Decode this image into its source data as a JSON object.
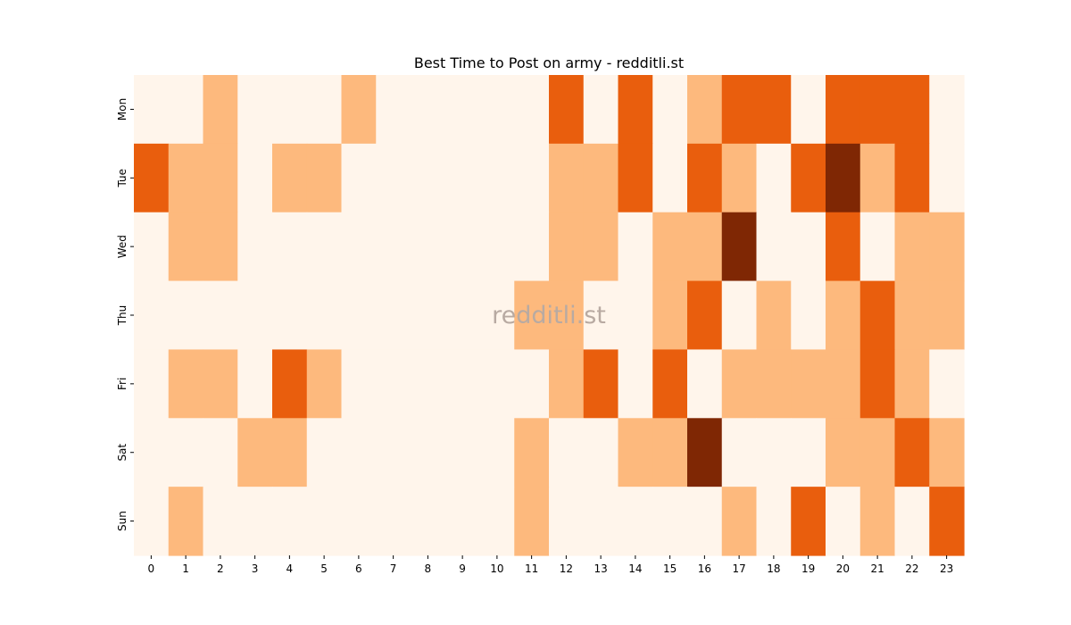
{
  "chart_data": {
    "type": "heatmap",
    "title": "Best Time to Post on army - redditli.st",
    "watermark": "redditli.st",
    "xlabel": "",
    "ylabel": "",
    "x_categories": [
      "0",
      "1",
      "2",
      "3",
      "4",
      "5",
      "6",
      "7",
      "8",
      "9",
      "10",
      "11",
      "12",
      "13",
      "14",
      "15",
      "16",
      "17",
      "18",
      "19",
      "20",
      "21",
      "22",
      "23"
    ],
    "y_categories": [
      "Mon",
      "Tue",
      "Wed",
      "Thu",
      "Fri",
      "Sat",
      "Sun"
    ],
    "values": [
      [
        0,
        0,
        1,
        0,
        0,
        0,
        1,
        0,
        0,
        0,
        0,
        0,
        2,
        0,
        2,
        0,
        1,
        2,
        2,
        0,
        2,
        2,
        2,
        0
      ],
      [
        2,
        1,
        1,
        0,
        1,
        1,
        0,
        0,
        0,
        0,
        0,
        0,
        1,
        1,
        2,
        0,
        2,
        1,
        0,
        2,
        3,
        1,
        2,
        0
      ],
      [
        0,
        1,
        1,
        0,
        0,
        0,
        0,
        0,
        0,
        0,
        0,
        0,
        1,
        1,
        0,
        1,
        1,
        3,
        0,
        0,
        2,
        0,
        1,
        1
      ],
      [
        0,
        0,
        0,
        0,
        0,
        0,
        0,
        0,
        0,
        0,
        0,
        1,
        1,
        0,
        0,
        1,
        2,
        0,
        1,
        0,
        1,
        2,
        1,
        1
      ],
      [
        0,
        1,
        1,
        0,
        2,
        1,
        0,
        0,
        0,
        0,
        0,
        0,
        1,
        2,
        0,
        2,
        0,
        1,
        1,
        1,
        1,
        2,
        1,
        0
      ],
      [
        0,
        0,
        0,
        1,
        1,
        0,
        0,
        0,
        0,
        0,
        0,
        1,
        0,
        0,
        1,
        1,
        3,
        0,
        0,
        0,
        1,
        1,
        2,
        1
      ],
      [
        0,
        1,
        0,
        0,
        0,
        0,
        0,
        0,
        0,
        0,
        0,
        1,
        0,
        0,
        0,
        0,
        0,
        1,
        0,
        2,
        0,
        1,
        0,
        2
      ]
    ],
    "value_range": [
      0,
      3
    ],
    "colorbar": false,
    "grid": false,
    "colors": {
      "0": "#fff5eb",
      "1": "#fdb97d",
      "2": "#e95e0d",
      "3": "#7f2704"
    }
  }
}
